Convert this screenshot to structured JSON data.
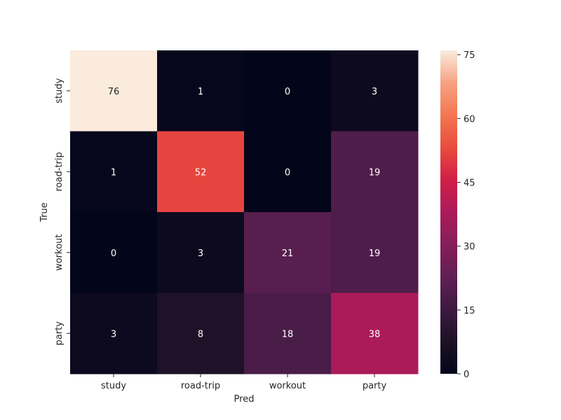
{
  "chart_data": {
    "type": "heatmap",
    "xlabel": "Pred",
    "ylabel": "True",
    "x_categories": [
      "study",
      "road-trip",
      "workout",
      "party"
    ],
    "y_categories": [
      "study",
      "road-trip",
      "workout",
      "party"
    ],
    "values": [
      [
        76,
        1,
        0,
        3
      ],
      [
        1,
        52,
        0,
        19
      ],
      [
        0,
        3,
        21,
        19
      ],
      [
        3,
        8,
        18,
        38
      ]
    ],
    "colorbar": {
      "range": [
        0,
        76
      ],
      "ticks": [
        "0",
        "15",
        "30",
        "45",
        "60",
        "75"
      ],
      "colormap": "rocket"
    },
    "annotation_colors": {
      "on_dark": "#ffffff",
      "on_light": "#262626"
    }
  }
}
